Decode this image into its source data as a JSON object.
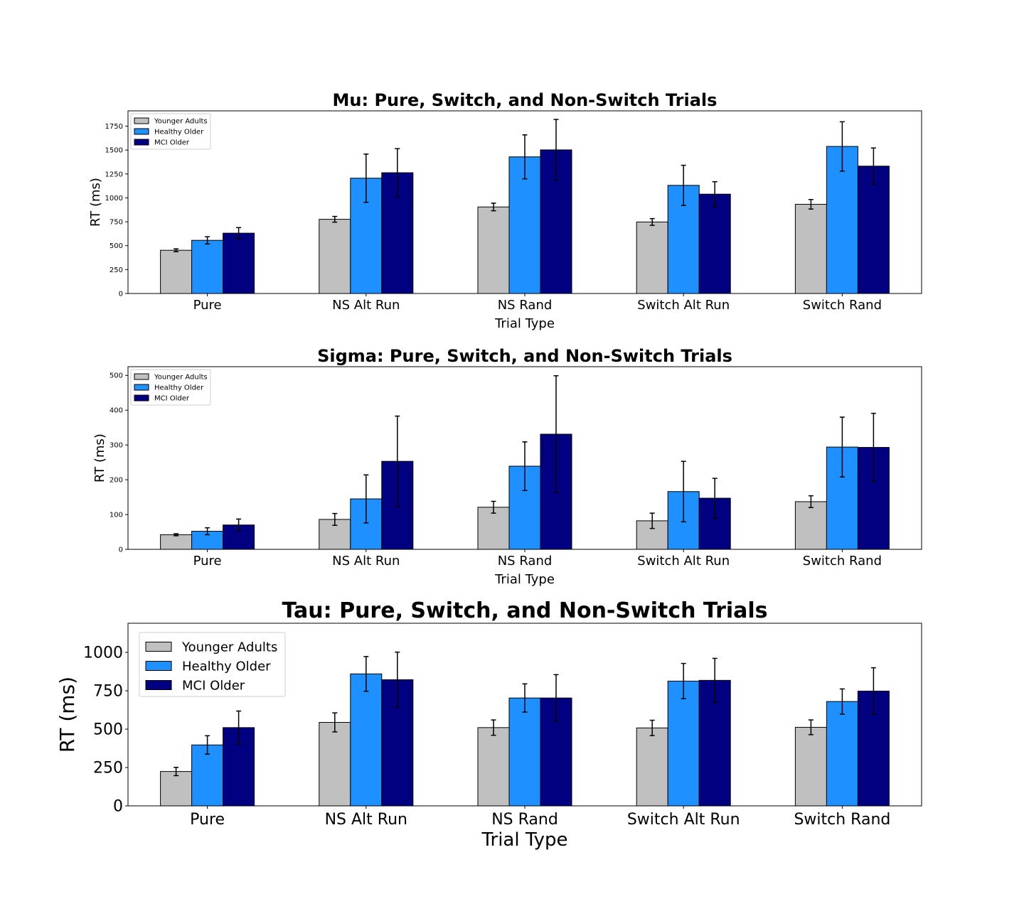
{
  "chart_data": [
    {
      "type": "bar",
      "title": "Mu: Pure, Switch, and Non-Switch Trials",
      "xlabel": "Trial Type",
      "ylabel": "RT (ms)",
      "categories": [
        "Pure",
        "NS Alt Run",
        "NS Rand",
        "Switch Alt Run",
        "Switch Rand"
      ],
      "ylim": [
        0,
        1910
      ],
      "yticks": [
        0,
        250,
        500,
        750,
        1000,
        1250,
        1500,
        1750
      ],
      "legend_position": "top-left",
      "series": [
        {
          "name": "Younger Adults",
          "color": "#c0c0c0",
          "values": [
            452,
            776,
            905,
            748,
            933
          ],
          "errors": [
            15,
            30,
            40,
            35,
            50
          ]
        },
        {
          "name": "Healthy Older",
          "color": "#1e90ff",
          "values": [
            556,
            1206,
            1429,
            1131,
            1538
          ],
          "errors": [
            38,
            252,
            230,
            210,
            258
          ]
        },
        {
          "name": "MCI Older",
          "color": "#000080",
          "values": [
            631,
            1263,
            1502,
            1039,
            1332
          ],
          "errors": [
            58,
            252,
            318,
            130,
            190
          ]
        }
      ]
    },
    {
      "type": "bar",
      "title": "Sigma: Pure, Switch, and Non-Switch Trials",
      "xlabel": "Trial Type",
      "ylabel": "RT (ms)",
      "categories": [
        "Pure",
        "NS Alt Run",
        "NS Rand",
        "Switch Alt Run",
        "Switch Rand"
      ],
      "ylim": [
        0,
        525
      ],
      "yticks": [
        0,
        100,
        200,
        300,
        400,
        500
      ],
      "legend_position": "top-left",
      "series": [
        {
          "name": "Younger Adults",
          "color": "#c0c0c0",
          "values": [
            42,
            86,
            121,
            82,
            137
          ],
          "errors": [
            3,
            17,
            17,
            22,
            17
          ]
        },
        {
          "name": "Healthy Older",
          "color": "#1e90ff",
          "values": [
            52,
            145,
            239,
            166,
            294
          ],
          "errors": [
            10,
            69,
            70,
            87,
            86
          ]
        },
        {
          "name": "MCI Older",
          "color": "#000080",
          "values": [
            70,
            253,
            331,
            147,
            293
          ],
          "errors": [
            17,
            130,
            168,
            57,
            98
          ]
        }
      ]
    },
    {
      "type": "bar",
      "title": "Tau: Pure, Switch, and Non-Switch Trials",
      "xlabel": "Trial Type",
      "ylabel": "RT (ms)",
      "categories": [
        "Pure",
        "NS Alt Run",
        "NS Rand",
        "Switch Alt Run",
        "Switch Rand"
      ],
      "ylim": [
        0,
        1190
      ],
      "yticks": [
        0,
        250,
        500,
        750,
        1000
      ],
      "legend_position": "top-left",
      "series": [
        {
          "name": "Younger Adults",
          "color": "#c0c0c0",
          "values": [
            224,
            544,
            510,
            508,
            512
          ],
          "errors": [
            27,
            62,
            50,
            50,
            48
          ]
        },
        {
          "name": "Healthy Older",
          "color": "#1e90ff",
          "values": [
            397,
            860,
            703,
            813,
            680
          ],
          "errors": [
            60,
            113,
            92,
            115,
            82
          ]
        },
        {
          "name": "MCI Older",
          "color": "#000080",
          "values": [
            510,
            822,
            703,
            818,
            748
          ],
          "errors": [
            108,
            180,
            152,
            143,
            152
          ]
        }
      ]
    }
  ]
}
